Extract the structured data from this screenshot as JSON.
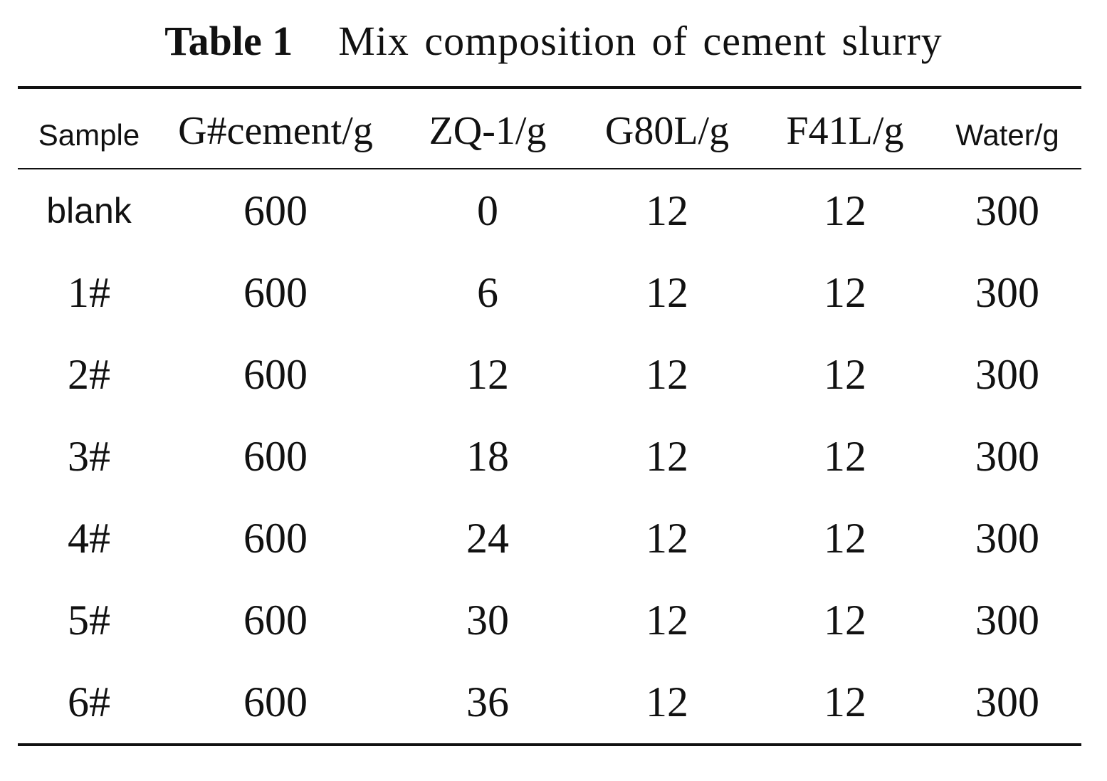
{
  "caption": {
    "label": "Table 1",
    "title": "Mix composition of cement slurry"
  },
  "table": {
    "headers": [
      "Sample",
      "G#cement/g",
      "ZQ-1/g",
      "G80L/g",
      "F41L/g",
      "Water/g"
    ],
    "rows": [
      [
        "blank",
        "600",
        "0",
        "12",
        "12",
        "300"
      ],
      [
        "1#",
        "600",
        "6",
        "12",
        "12",
        "300"
      ],
      [
        "2#",
        "600",
        "12",
        "12",
        "12",
        "300"
      ],
      [
        "3#",
        "600",
        "18",
        "12",
        "12",
        "300"
      ],
      [
        "4#",
        "600",
        "24",
        "12",
        "12",
        "300"
      ],
      [
        "5#",
        "600",
        "30",
        "12",
        "12",
        "300"
      ],
      [
        "6#",
        "600",
        "36",
        "12",
        "12",
        "300"
      ]
    ]
  }
}
